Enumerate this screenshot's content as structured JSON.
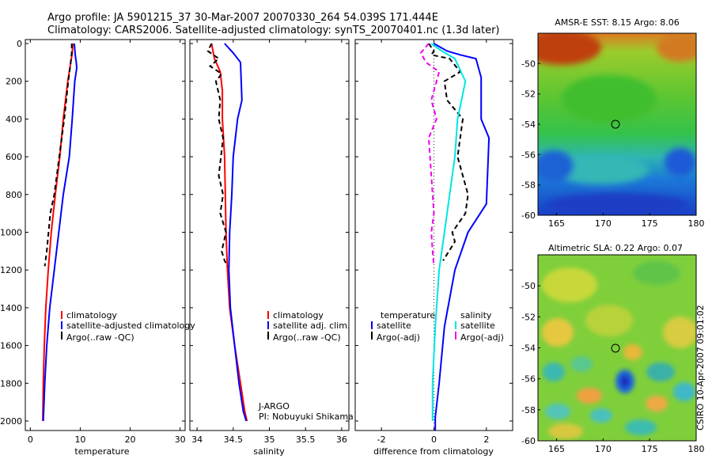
{
  "header": {
    "line1": "Argo profile: JA 5901215_37 30-Mar-2007 20070330_264 54.039S 171.444E",
    "line2": "Climatology: CARS2006. Satellite-adjusted climatology: synTS_20070401.nc (1.3d later)"
  },
  "footer": {
    "agency": "J-ARGO",
    "pi": "PI: Nobuyuki Shikama",
    "credit": "CSIRO 10-Apr-2007 09:01:02"
  },
  "colors": {
    "climatology": "#ff0000",
    "satellite": "#0000ff",
    "argo": "#000000",
    "sat_salinity": "#00e5e5",
    "argo_salinity": "#ee00ee"
  },
  "chart_data": [
    {
      "type": "line",
      "xlabel": "temperature",
      "ylabel": "",
      "xlim": [
        -1,
        31
      ],
      "ylim": [
        2050,
        0
      ],
      "xticks": [
        0,
        10,
        20,
        30
      ],
      "yticks": [
        0,
        200,
        400,
        600,
        800,
        1000,
        1200,
        1400,
        1600,
        1800,
        2000
      ],
      "legend": [
        "climatology",
        "satellite-adjusted climatology",
        "Argo(..raw -QC)"
      ],
      "series": [
        {
          "name": "climatology",
          "color": "#ff0000",
          "dash": "",
          "x": [
            8.5,
            8.4,
            8.1,
            7.5,
            6.6,
            5.9,
            5.0,
            4.2,
            3.6,
            3.1,
            2.8,
            2.6,
            2.5
          ],
          "y": [
            0,
            50,
            100,
            200,
            400,
            600,
            800,
            1000,
            1200,
            1400,
            1600,
            1800,
            2000
          ]
        },
        {
          "name": "satellite-adjusted climatology",
          "color": "#0000ff",
          "dash": "",
          "x": [
            8.8,
            9.0,
            9.2,
            9.3,
            8.9,
            8.4,
            7.8,
            6.6,
            5.7,
            4.8,
            3.9,
            3.3,
            2.9,
            2.6
          ],
          "y": [
            0,
            60,
            100,
            130,
            200,
            400,
            600,
            800,
            1000,
            1200,
            1400,
            1600,
            1800,
            2000
          ]
        },
        {
          "name": "Argo(..raw -QC)",
          "color": "#000000",
          "dash": "6,4",
          "x": [
            8.3,
            8.3,
            8.1,
            7.6,
            6.8,
            5.8,
            4.8,
            4.0,
            3.3,
            2.9
          ],
          "y": [
            0,
            50,
            100,
            200,
            400,
            600,
            800,
            900,
            1100,
            1180
          ]
        }
      ]
    },
    {
      "type": "line",
      "xlabel": "salinity",
      "ylabel": "",
      "xlim": [
        33.9,
        36.1
      ],
      "ylim": [
        2050,
        0
      ],
      "xticks": [
        34,
        34.5,
        35,
        35.5,
        36
      ],
      "legend": [
        "climatology",
        "satellite adj. clim.",
        "Argo(..raw -QC)"
      ],
      "series": [
        {
          "name": "climatology",
          "color": "#ff0000",
          "dash": "",
          "x": [
            34.2,
            34.24,
            34.32,
            34.35,
            34.35,
            34.38,
            34.39,
            34.4,
            34.42,
            34.45,
            34.52,
            34.6,
            34.66,
            34.69
          ],
          "y": [
            0,
            80,
            150,
            250,
            400,
            600,
            800,
            1000,
            1200,
            1400,
            1600,
            1800,
            1950,
            2000
          ]
        },
        {
          "name": "satellite adj. clim.",
          "color": "#0000ff",
          "dash": "",
          "x": [
            34.38,
            34.5,
            34.6,
            34.62,
            34.56,
            34.5,
            34.48,
            34.45,
            34.44,
            34.46,
            34.52,
            34.58,
            34.64,
            34.68
          ],
          "y": [
            0,
            50,
            100,
            300,
            400,
            600,
            800,
            1000,
            1200,
            1400,
            1600,
            1800,
            1950,
            2000
          ]
        },
        {
          "name": "Argo(..raw -QC)",
          "color": "#000000",
          "dash": "6,4",
          "x": [
            34.2,
            34.15,
            34.3,
            34.18,
            34.34,
            34.26,
            34.32,
            34.3,
            34.36,
            34.33,
            34.3,
            34.36,
            34.32,
            34.4,
            34.34,
            34.38,
            34.42
          ],
          "y": [
            0,
            40,
            80,
            120,
            160,
            200,
            300,
            400,
            500,
            600,
            700,
            800,
            900,
            1000,
            1100,
            1150,
            1180
          ]
        }
      ]
    },
    {
      "type": "line",
      "xlabel": "difference from climatology",
      "ylabel": "",
      "xlim": [
        -3,
        3
      ],
      "ylim": [
        2050,
        0
      ],
      "xticks": [
        -2,
        0,
        2
      ],
      "legend_groups": [
        {
          "title": "temperature",
          "items": [
            "satellite",
            "Argo(-adj)"
          ]
        },
        {
          "title": "salinity",
          "items": [
            "satellite",
            "Argo(-adj)"
          ]
        }
      ],
      "series": [
        {
          "name": "satellite",
          "group": "temperature",
          "color": "#0000ff",
          "dash": "",
          "x": [
            0.0,
            0.5,
            1.0,
            1.6,
            1.8,
            1.8,
            2.1,
            2.0,
            1.3,
            0.8,
            0.4,
            0.2,
            0.05,
            0.05
          ],
          "y": [
            0,
            40,
            60,
            80,
            180,
            400,
            500,
            850,
            1000,
            1200,
            1500,
            1800,
            1980,
            2050
          ]
        },
        {
          "name": "Argo(-adj)",
          "group": "temperature",
          "color": "#000000",
          "dash": "6,4",
          "x": [
            -0.2,
            0.0,
            -0.1,
            0.6,
            1.0,
            0.4,
            0.5,
            1.1,
            0.9,
            1.3,
            1.2,
            0.7,
            0.8,
            0.35
          ],
          "y": [
            0,
            40,
            60,
            80,
            150,
            200,
            300,
            400,
            600,
            800,
            900,
            1000,
            1050,
            1150
          ]
        },
        {
          "name": "satellite",
          "group": "salinity",
          "color": "#00e5e5",
          "dash": "",
          "x": [
            -0.1,
            0.3,
            0.8,
            1.2,
            0.9,
            0.8,
            0.6,
            0.4,
            0.2,
            0.05,
            -0.05,
            -0.05
          ],
          "y": [
            0,
            40,
            80,
            200,
            400,
            600,
            800,
            1000,
            1200,
            1500,
            1800,
            2000
          ]
        },
        {
          "name": "Argo(-adj)",
          "group": "salinity",
          "color": "#ee00ee",
          "dash": "6,4",
          "x": [
            -0.2,
            -0.5,
            -0.3,
            0.2,
            0.1,
            -0.1,
            0.1,
            -0.2,
            -0.1,
            0.0,
            -0.1,
            -0.05,
            0.0
          ],
          "y": [
            0,
            50,
            100,
            150,
            200,
            300,
            400,
            500,
            700,
            900,
            1000,
            1100,
            1180
          ]
        }
      ]
    },
    {
      "type": "heatmap",
      "title": "AMSR-E SST: 8.15 Argo: 8.06",
      "xlim": [
        163,
        180
      ],
      "ylim": [
        -60,
        -48
      ],
      "xticks": [
        165,
        170,
        175,
        180
      ],
      "yticks": [
        -50,
        -52,
        -54,
        -56,
        -58,
        -60
      ],
      "marker": {
        "lon": 171.4,
        "lat": -54.0
      }
    },
    {
      "type": "heatmap",
      "title": "Altimetric SLA: 0.22 Argo: 0.07",
      "xlim": [
        163,
        180
      ],
      "ylim": [
        -60,
        -48
      ],
      "xticks": [
        165,
        170,
        175,
        180
      ],
      "yticks": [
        -50,
        -52,
        -54,
        -56,
        -58,
        -60
      ],
      "marker": {
        "lon": 171.4,
        "lat": -54.0
      }
    }
  ]
}
